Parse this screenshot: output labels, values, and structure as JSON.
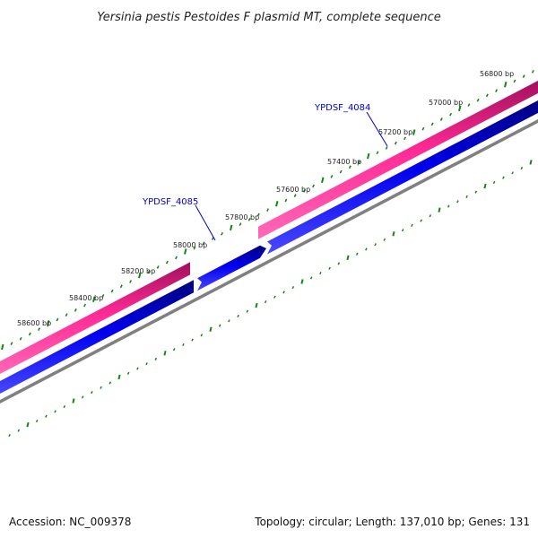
{
  "title": "Yersinia pestis Pestoides F plasmid MT, complete sequence",
  "footer": {
    "accession": "Accession: NC_009378",
    "summary": "Topology: circular; Length: 137,010 bp; Genes: 131"
  },
  "genes": [
    {
      "label": "YPDSF_4084"
    },
    {
      "label": "YPDSF_4085"
    }
  ],
  "ruler_labels": [
    "56800 bp",
    "57000 bp",
    "57200 bp",
    "57400 bp",
    "57600 bp",
    "57800 bp",
    "58000 bp",
    "58200 bp",
    "58400 bp",
    "58600 bp"
  ],
  "colors": {
    "pink_track": "#ff1a8c",
    "blue_track": "#0000ee",
    "gray_track": "#808080",
    "ticks": "#118811",
    "gene_label": "#0000cc"
  }
}
